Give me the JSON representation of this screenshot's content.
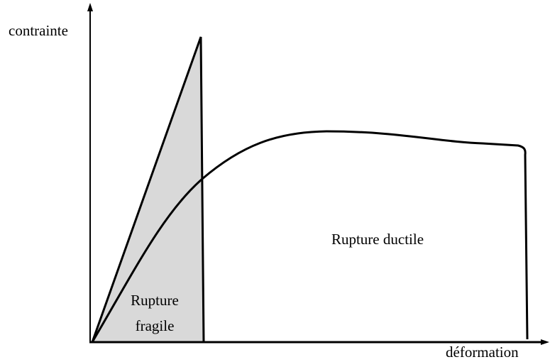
{
  "axes": {
    "y_label": "contrainte",
    "x_label": "déformation"
  },
  "regions": {
    "brittle": {
      "lines": [
        "Rupture",
        "fragile"
      ]
    },
    "ductile": {
      "label": "Rupture ductile"
    }
  }
}
